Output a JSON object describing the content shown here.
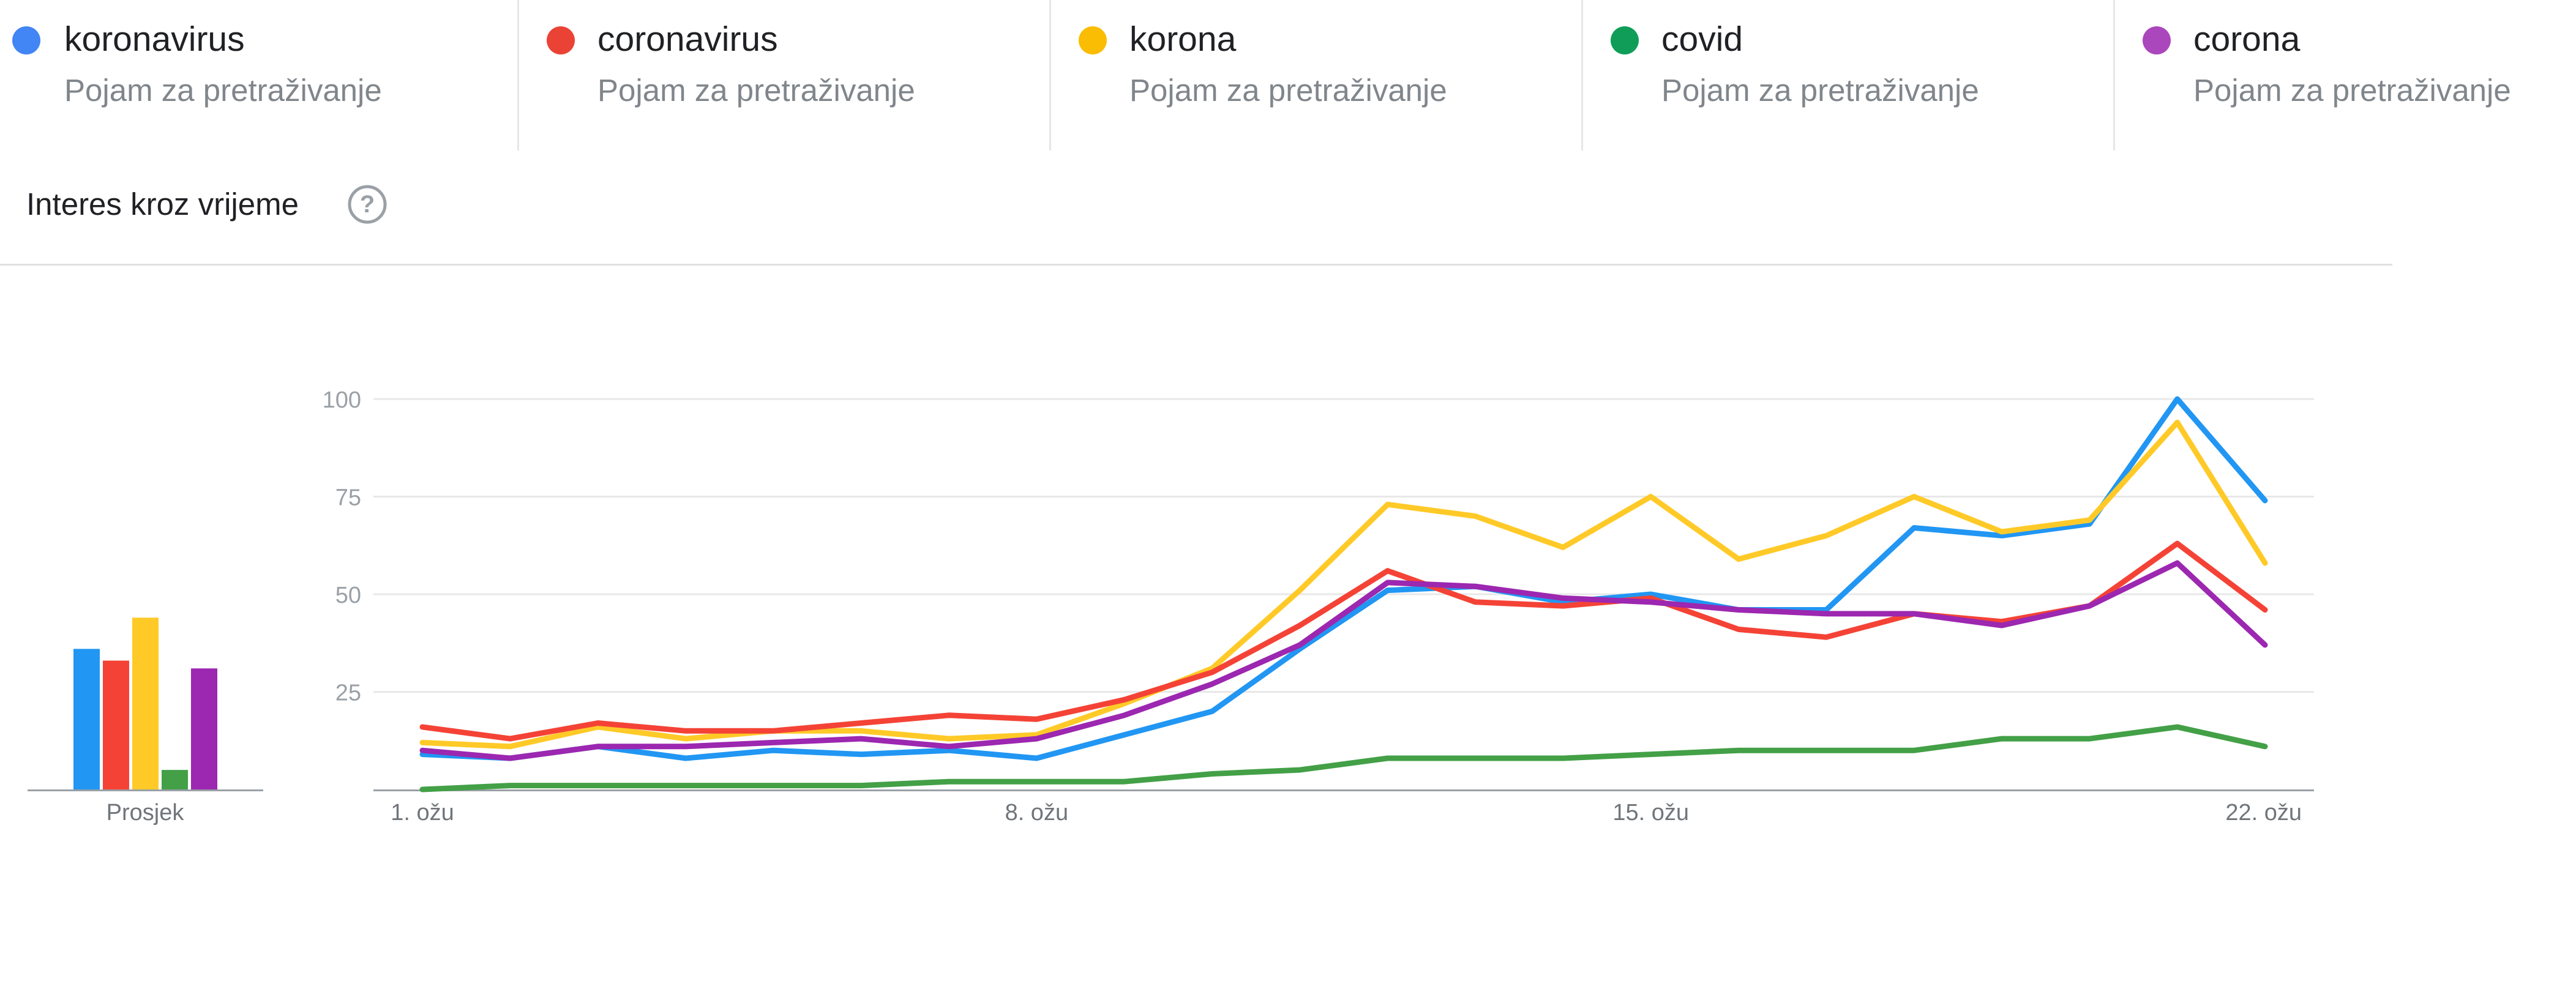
{
  "terms": [
    {
      "name": "koronavirus",
      "subtitle": "Pojam za pretraživanje",
      "color": "#4285f4"
    },
    {
      "name": "coronavirus",
      "subtitle": "Pojam za pretraživanje",
      "color": "#ea4335"
    },
    {
      "name": "korona",
      "subtitle": "Pojam za pretraživanje",
      "color": "#fbbc04"
    },
    {
      "name": "covid",
      "subtitle": "Pojam za pretraživanje",
      "color": "#0f9d58"
    },
    {
      "name": "corona",
      "subtitle": "Pojam za pretraživanje",
      "color": "#ab47bc"
    }
  ],
  "section": {
    "title": "Interes kroz vrijeme",
    "help_icon": "help-circle-icon"
  },
  "chart_data": [
    {
      "type": "bar",
      "xlabel": "Prosjek",
      "categories": [
        "koronavirus",
        "coronavirus",
        "korona",
        "covid",
        "corona"
      ],
      "values": [
        36,
        33,
        44,
        5,
        31
      ],
      "colors": [
        "#2196f3",
        "#f44336",
        "#ffca28",
        "#43a047",
        "#9c27b0"
      ]
    },
    {
      "type": "line",
      "x": [
        "1. ožu",
        "2. ožu",
        "3. ožu",
        "4. ožu",
        "5. ožu",
        "6. ožu",
        "7. ožu",
        "8. ožu",
        "9. ožu",
        "10. ožu",
        "11. ožu",
        "12. ožu",
        "13. ožu",
        "14. ožu",
        "15. ožu",
        "16. ožu",
        "17. ožu",
        "18. ožu",
        "19. ožu",
        "20. ožu",
        "21. ožu",
        "22. ožu"
      ],
      "xticks": [
        "1. ožu",
        "8. ožu",
        "15. ožu",
        "22. ožu"
      ],
      "yticks": [
        25,
        50,
        75,
        100
      ],
      "ylim": [
        0,
        100
      ],
      "grid": true,
      "series": [
        {
          "name": "koronavirus",
          "color": "#2196f3",
          "values": [
            9,
            8,
            11,
            8,
            10,
            9,
            10,
            8,
            14,
            20,
            36,
            51,
            52,
            48,
            50,
            46,
            46,
            67,
            65,
            68,
            100,
            74
          ]
        },
        {
          "name": "korona",
          "color": "#ffca28",
          "values": [
            12,
            11,
            16,
            13,
            15,
            15,
            13,
            14,
            22,
            31,
            51,
            73,
            70,
            62,
            75,
            59,
            65,
            75,
            66,
            69,
            94,
            58
          ]
        },
        {
          "name": "coronavirus",
          "color": "#f44336",
          "values": [
            16,
            13,
            17,
            15,
            15,
            17,
            19,
            18,
            23,
            30,
            42,
            56,
            48,
            47,
            49,
            41,
            39,
            45,
            43,
            47,
            63,
            46
          ]
        },
        {
          "name": "corona",
          "color": "#9c27b0",
          "values": [
            10,
            8,
            11,
            11,
            12,
            13,
            11,
            13,
            19,
            27,
            37,
            53,
            52,
            49,
            48,
            46,
            45,
            45,
            42,
            47,
            58,
            37
          ]
        },
        {
          "name": "covid",
          "color": "#43a047",
          "values": [
            0,
            1,
            1,
            1,
            1,
            1,
            2,
            2,
            2,
            4,
            5,
            8,
            8,
            8,
            9,
            10,
            10,
            10,
            13,
            13,
            16,
            11
          ]
        }
      ]
    }
  ]
}
